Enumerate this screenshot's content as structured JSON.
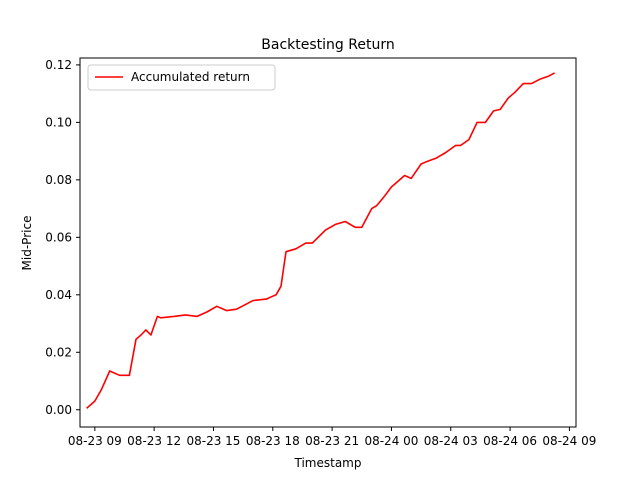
{
  "chart_data": {
    "type": "line",
    "title": "Backtesting Return",
    "xlabel": "Timestamp",
    "ylabel": "Mid-Price",
    "x_ticks": [
      "08-23 09",
      "08-23 12",
      "08-23 15",
      "08-23 18",
      "08-23 21",
      "08-24 00",
      "08-24 03",
      "08-24 06",
      "08-24 09"
    ],
    "y_ticks": [
      "0.00",
      "0.02",
      "0.04",
      "0.06",
      "0.08",
      "0.10",
      "0.12"
    ],
    "xlim": [
      "08-23 08:15",
      "08-24 09:20"
    ],
    "ylim": [
      -0.006,
      0.1224
    ],
    "grid": false,
    "legend_position": "top-left",
    "series": [
      {
        "name": "Accumulated return",
        "color": "#ff0000",
        "x": [
          "08-23 08:35",
          "08-23 09:00",
          "08-23 09:20",
          "08-23 09:45",
          "08-23 10:15",
          "08-23 10:45",
          "08-23 11:05",
          "08-23 11:20",
          "08-23 11:35",
          "08-23 11:50",
          "08-23 12:10",
          "08-23 12:20",
          "08-23 13:00",
          "08-23 13:35",
          "08-23 14:10",
          "08-23 14:40",
          "08-23 15:10",
          "08-23 15:40",
          "08-23 16:10",
          "08-23 17:00",
          "08-23 17:40",
          "08-23 18:00",
          "08-23 18:10",
          "08-23 18:25",
          "08-23 18:40",
          "08-23 19:10",
          "08-23 19:40",
          "08-23 20:00",
          "08-23 20:40",
          "08-23 21:10",
          "08-23 21:40",
          "08-23 22:10",
          "08-23 22:30",
          "08-23 23:00",
          "08-23 23:15",
          "08-23 23:40",
          "08-24 00:00",
          "08-24 00:40",
          "08-24 01:00",
          "08-24 01:30",
          "08-24 01:50",
          "08-24 02:15",
          "08-24 02:45",
          "08-24 03:15",
          "08-24 03:30",
          "08-24 03:55",
          "08-24 04:20",
          "08-24 04:45",
          "08-24 05:10",
          "08-24 05:30",
          "08-24 05:55",
          "08-24 06:15",
          "08-24 06:40",
          "08-24 07:05",
          "08-24 07:30",
          "08-24 07:55",
          "08-24 08:15"
        ],
        "values": [
          0.0005,
          0.003,
          0.007,
          0.0135,
          0.012,
          0.012,
          0.0245,
          0.026,
          0.0278,
          0.026,
          0.0325,
          0.032,
          0.0325,
          0.033,
          0.0325,
          0.034,
          0.036,
          0.0345,
          0.035,
          0.038,
          0.0385,
          0.0395,
          0.04,
          0.043,
          0.055,
          0.056,
          0.058,
          0.058,
          0.0625,
          0.0645,
          0.0655,
          0.0635,
          0.0635,
          0.07,
          0.071,
          0.0745,
          0.0775,
          0.0815,
          0.0805,
          0.0855,
          0.0865,
          0.0875,
          0.0895,
          0.092,
          0.092,
          0.094,
          0.1,
          0.1,
          0.104,
          0.1045,
          0.1085,
          0.1105,
          0.1135,
          0.1135,
          0.115,
          0.116,
          0.1172
        ]
      }
    ]
  }
}
